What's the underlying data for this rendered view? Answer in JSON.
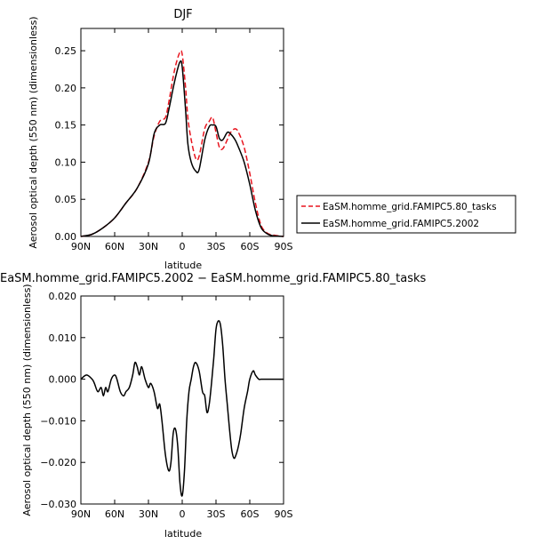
{
  "chart_data": [
    {
      "type": "line",
      "title": "DJF",
      "xlabel": "latitude",
      "ylabel": "Aerosol optical depth (550 nm) (dimensionless)",
      "xlim": [
        -90,
        90
      ],
      "ylim": [
        0,
        0.28
      ],
      "xticks": [
        -90,
        -60,
        -30,
        0,
        30,
        60,
        90
      ],
      "xticklabels": [
        "90N",
        "60N",
        "30N",
        "0",
        "30S",
        "60S",
        "90S"
      ],
      "yticks": [
        0,
        0.05,
        0.1,
        0.15,
        0.2,
        0.25
      ],
      "yticklabels": [
        "0.00",
        "0.05",
        "0.10",
        "0.15",
        "0.20",
        "0.25"
      ],
      "legend_position": "right",
      "series": [
        {
          "name": "EaSM.homme_grid.FAMIPC5.80_tasks",
          "color": "#e8141e",
          "dash": "dashed",
          "x": [
            -90,
            -80,
            -70,
            -60,
            -50,
            -40,
            -30,
            -25,
            -20,
            -15,
            -12,
            -8,
            -5,
            -2,
            0,
            3,
            5,
            8,
            12,
            15,
            20,
            24,
            27,
            30,
            33,
            36,
            40,
            43,
            47,
            50,
            55,
            60,
            65,
            70,
            75,
            80,
            90
          ],
          "y": [
            0.0,
            0.003,
            0.012,
            0.025,
            0.045,
            0.065,
            0.1,
            0.135,
            0.155,
            0.16,
            0.18,
            0.215,
            0.235,
            0.248,
            0.245,
            0.2,
            0.16,
            0.13,
            0.105,
            0.108,
            0.145,
            0.155,
            0.16,
            0.14,
            0.12,
            0.118,
            0.13,
            0.14,
            0.145,
            0.14,
            0.12,
            0.085,
            0.045,
            0.015,
            0.005,
            0.002,
            0.0
          ]
        },
        {
          "name": "EaSM.homme_grid.FAMIPC5.2002",
          "color": "#000000",
          "dash": "solid",
          "x": [
            -90,
            -80,
            -70,
            -60,
            -50,
            -40,
            -30,
            -25,
            -20,
            -15,
            -12,
            -8,
            -5,
            -2,
            0,
            3,
            5,
            8,
            12,
            15,
            20,
            24,
            27,
            30,
            33,
            36,
            40,
            43,
            47,
            50,
            55,
            60,
            65,
            70,
            75,
            80,
            90
          ],
          "y": [
            0.0,
            0.003,
            0.012,
            0.025,
            0.045,
            0.065,
            0.098,
            0.138,
            0.15,
            0.152,
            0.17,
            0.2,
            0.22,
            0.235,
            0.228,
            0.17,
            0.125,
            0.1,
            0.088,
            0.09,
            0.13,
            0.148,
            0.15,
            0.148,
            0.132,
            0.13,
            0.14,
            0.138,
            0.13,
            0.12,
            0.1,
            0.07,
            0.035,
            0.012,
            0.004,
            0.001,
            0.0
          ]
        }
      ]
    },
    {
      "type": "line",
      "title": "EaSM.homme_grid.FAMIPC5.2002 − EaSM.homme_grid.FAMIPC5.80_tasks",
      "xlabel": "latitude",
      "ylabel": "Aerosol optical depth (550 nm) (dimensionless)",
      "xlim": [
        -90,
        90
      ],
      "ylim": [
        -0.03,
        0.02
      ],
      "xticks": [
        -90,
        -60,
        -30,
        0,
        30,
        60,
        90
      ],
      "xticklabels": [
        "90N",
        "60N",
        "30N",
        "0",
        "30S",
        "60S",
        "90S"
      ],
      "yticks": [
        -0.03,
        -0.02,
        -0.01,
        0,
        0.01,
        0.02
      ],
      "yticklabels": [
        "−0.030",
        "−0.020",
        "−0.010",
        "0.000",
        "0.010",
        "0.020"
      ],
      "series": [
        {
          "color": "#000000",
          "dash": "solid",
          "x": [
            -90,
            -85,
            -80,
            -78,
            -75,
            -72,
            -70,
            -68,
            -66,
            -63,
            -60,
            -58,
            -55,
            -52,
            -50,
            -47,
            -44,
            -42,
            -40,
            -38,
            -36,
            -33,
            -30,
            -28,
            -25,
            -22,
            -20,
            -18,
            -15,
            -12,
            -10,
            -8,
            -6,
            -4,
            -2,
            0,
            2,
            4,
            6,
            8,
            10,
            12,
            15,
            18,
            20,
            22,
            24,
            26,
            28,
            30,
            32,
            34,
            36,
            38,
            40,
            42,
            44,
            46,
            48,
            50,
            52,
            55,
            58,
            60,
            63,
            65,
            68,
            70,
            75,
            80,
            90
          ],
          "y": [
            0.0,
            0.001,
            0.0,
            -0.001,
            -0.003,
            -0.002,
            -0.004,
            -0.002,
            -0.003,
            0.0,
            0.001,
            0.0,
            -0.003,
            -0.004,
            -0.003,
            -0.002,
            0.001,
            0.004,
            0.003,
            0.001,
            0.003,
            0.0,
            -0.002,
            -0.001,
            -0.003,
            -0.007,
            -0.006,
            -0.01,
            -0.018,
            -0.022,
            -0.02,
            -0.013,
            -0.012,
            -0.016,
            -0.025,
            -0.028,
            -0.022,
            -0.01,
            -0.003,
            0.0,
            0.003,
            0.004,
            0.002,
            -0.003,
            -0.004,
            -0.008,
            -0.006,
            -0.001,
            0.005,
            0.012,
            0.014,
            0.013,
            0.008,
            0.0,
            -0.006,
            -0.012,
            -0.017,
            -0.019,
            -0.018,
            -0.016,
            -0.013,
            -0.007,
            -0.003,
            0.0,
            0.002,
            0.001,
            0.0,
            0.0,
            0.0,
            0.0,
            0.0
          ]
        }
      ]
    }
  ]
}
